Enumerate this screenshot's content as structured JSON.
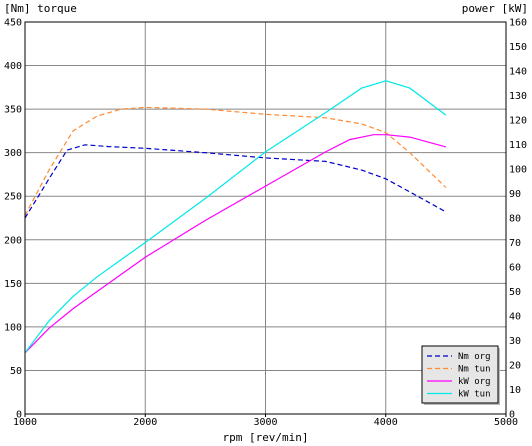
{
  "chart_data": {
    "type": "line",
    "title": "",
    "xlabel": "rpm [rev/min]",
    "ylabel_left": "[Nm] torque",
    "ylabel_right": "power [kW]",
    "xlim": [
      1000,
      5000
    ],
    "ylim_left": [
      0,
      450
    ],
    "ylim_right": [
      0,
      160
    ],
    "x_ticks": [
      1000,
      2000,
      3000,
      4000,
      5000
    ],
    "y_ticks_left": [
      0,
      50,
      100,
      150,
      200,
      250,
      300,
      350,
      400,
      450
    ],
    "y_ticks_right": [
      0,
      10,
      20,
      30,
      40,
      50,
      60,
      70,
      80,
      90,
      100,
      110,
      120,
      130,
      140,
      150,
      160
    ],
    "grid": true,
    "legend_position": "bottom-right",
    "series": [
      {
        "name": "Nm org",
        "axis": "left",
        "style": "dashed",
        "color": "#0000cc",
        "x": [
          1000,
          1200,
          1350,
          1500,
          1700,
          2000,
          2500,
          3000,
          3500,
          3800,
          4000,
          4200,
          4500
        ],
        "y": [
          225,
          270,
          303,
          309,
          307,
          305,
          300,
          294,
          290,
          280,
          270,
          255,
          232
        ]
      },
      {
        "name": "Nm tun",
        "axis": "left",
        "style": "dashed",
        "color": "#ff8a33",
        "x": [
          1000,
          1200,
          1400,
          1600,
          1800,
          2000,
          2500,
          3000,
          3500,
          3800,
          4000,
          4200,
          4500
        ],
        "y": [
          228,
          280,
          325,
          342,
          350,
          352,
          350,
          344,
          340,
          333,
          323,
          300,
          260
        ]
      },
      {
        "name": "kW org",
        "axis": "right",
        "style": "solid",
        "color": "#ff00ff",
        "x": [
          1000,
          1200,
          1400,
          1600,
          2000,
          2500,
          3000,
          3500,
          3700,
          3900,
          4000,
          4200,
          4500
        ],
        "y": [
          25,
          35,
          43,
          50,
          64,
          79,
          93,
          107,
          112,
          114,
          114,
          113,
          109
        ]
      },
      {
        "name": "kW tun",
        "axis": "right",
        "style": "solid",
        "color": "#00e8e8",
        "x": [
          1000,
          1200,
          1400,
          1600,
          1800,
          2000,
          2500,
          3000,
          3500,
          3800,
          4000,
          4200,
          4500
        ],
        "y": [
          25,
          38,
          48,
          56,
          63,
          70,
          88,
          107,
          123,
          133,
          136,
          133,
          122
        ]
      }
    ]
  },
  "colors": {
    "grid": "#888888",
    "frame": "#000000",
    "background": "#ffffff"
  }
}
